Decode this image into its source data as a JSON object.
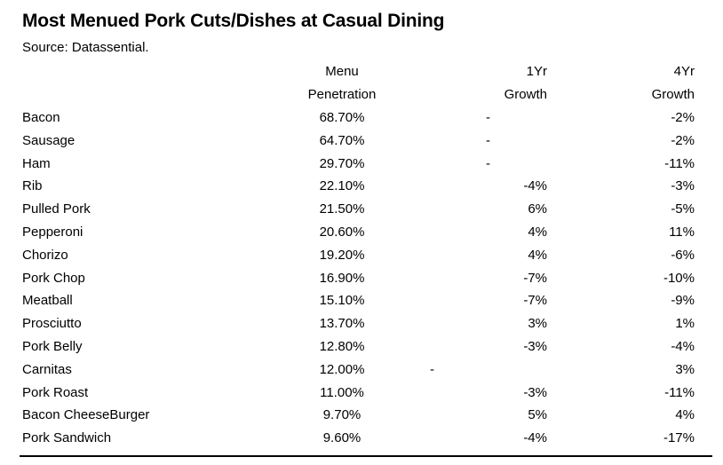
{
  "title": "Most Menued Pork Cuts/Dishes at Casual Dining",
  "source": "Source: Datassential.",
  "headers": {
    "menu_line1": "Menu",
    "menu_line2": "Penetration",
    "y1_line1": "1Yr",
    "y1_line2": "Growth",
    "y4_line1": "4Yr",
    "y4_line2": "Growth"
  },
  "rows": [
    {
      "name": "Bacon",
      "penetration": "68.70%",
      "growth_1yr": "-",
      "growth_4yr": "-2%"
    },
    {
      "name": "Sausage",
      "penetration": "64.70%",
      "growth_1yr": "-",
      "growth_4yr": "-2%"
    },
    {
      "name": "Ham",
      "penetration": "29.70%",
      "growth_1yr": "-",
      "growth_4yr": "-11%"
    },
    {
      "name": "Rib",
      "penetration": "22.10%",
      "growth_1yr": "-4%",
      "growth_4yr": "-3%"
    },
    {
      "name": "Pulled Pork",
      "penetration": "21.50%",
      "growth_1yr": "6%",
      "growth_4yr": "-5%"
    },
    {
      "name": "Pepperoni",
      "penetration": "20.60%",
      "growth_1yr": "4%",
      "growth_4yr": "11%"
    },
    {
      "name": "Chorizo",
      "penetration": "19.20%",
      "growth_1yr": "4%",
      "growth_4yr": "-6%"
    },
    {
      "name": "Pork Chop",
      "penetration": "16.90%",
      "growth_1yr": "-7%",
      "growth_4yr": "-10%"
    },
    {
      "name": "Meatball",
      "penetration": "15.10%",
      "growth_1yr": "-7%",
      "growth_4yr": "-9%"
    },
    {
      "name": "Prosciutto",
      "penetration": "13.70%",
      "growth_1yr": "3%",
      "growth_4yr": "1%"
    },
    {
      "name": "Pork Belly",
      "penetration": "12.80%",
      "growth_1yr": "-3%",
      "growth_4yr": "-4%"
    },
    {
      "name": "Carnitas",
      "penetration": "12.00%",
      "growth_1yr": "-",
      "growth_4yr": "3%"
    },
    {
      "name": "Pork Roast",
      "penetration": "11.00%",
      "growth_1yr": "-3%",
      "growth_4yr": "-11%"
    },
    {
      "name": "Bacon CheeseBurger",
      "penetration": "9.70%",
      "growth_1yr": "5%",
      "growth_4yr": "4%"
    },
    {
      "name": "Pork Sandwich",
      "penetration": "9.60%",
      "growth_1yr": "-4%",
      "growth_4yr": "-17%"
    }
  ]
}
